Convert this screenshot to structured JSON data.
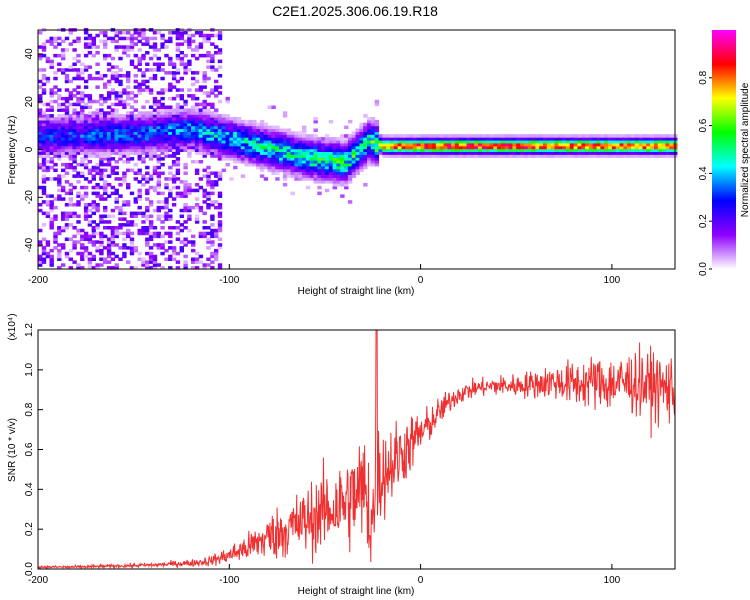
{
  "title": "C2E1.2025.306.06.19.R18",
  "chart_data": [
    {
      "type": "heatmap",
      "title": "C2E1.2025.306.06.19.R18",
      "xlabel": "Height of straight line (km)",
      "ylabel": "Frequency (Hz)",
      "xlim": [
        -200,
        133
      ],
      "ylim": [
        -50,
        50
      ],
      "xticks": [
        -200,
        -100,
        0,
        100
      ],
      "xtick_labels": [
        "-200",
        "-100",
        "0",
        "100"
      ],
      "yticks": [
        -40,
        -20,
        0,
        20,
        40
      ],
      "ytick_labels": [
        "-40",
        "-20",
        "0",
        "20",
        "40"
      ],
      "colorbar": {
        "label": "Normalized spectral amplitude",
        "range": [
          0,
          1
        ],
        "ticks": [
          0.0,
          0.2,
          0.4,
          0.6,
          0.8
        ],
        "tick_labels": [
          "0.0",
          "0.2",
          "0.4",
          "0.6",
          "0.8"
        ],
        "colors": [
          "#ffffff",
          "#8f00ff",
          "#0000ff",
          "#00ffff",
          "#00ff00",
          "#ffff00",
          "#ff0000",
          "#ff00ff"
        ]
      },
      "ridge": [
        {
          "x": -200,
          "freq": 5,
          "amp": 0.3
        },
        {
          "x": -150,
          "freq": 6,
          "amp": 0.35
        },
        {
          "x": -120,
          "freq": 8,
          "amp": 0.4
        },
        {
          "x": -100,
          "freq": 4,
          "amp": 0.45
        },
        {
          "x": -80,
          "freq": 0,
          "amp": 0.5
        },
        {
          "x": -60,
          "freq": -4,
          "amp": 0.5
        },
        {
          "x": -40,
          "freq": -6,
          "amp": 0.55
        },
        {
          "x": -28,
          "freq": 3,
          "amp": 0.5
        },
        {
          "x": -20,
          "freq": 1,
          "amp": 0.8
        },
        {
          "x": 0,
          "freq": 1,
          "amp": 0.9
        },
        {
          "x": 50,
          "freq": 1,
          "amp": 0.9
        },
        {
          "x": 100,
          "freq": 1,
          "amp": 0.85
        },
        {
          "x": 133,
          "freq": 1,
          "amp": 0.85
        }
      ]
    },
    {
      "type": "line",
      "xlabel": "Height of straight line (km)",
      "ylabel": "SNR (10 * v/v)",
      "y_scale_label": "(x10⁴)",
      "xlim": [
        -200,
        133
      ],
      "ylim": [
        0,
        1.2
      ],
      "xticks": [
        -200,
        -100,
        0,
        100
      ],
      "xtick_labels": [
        "-200",
        "-100",
        "0",
        "100"
      ],
      "yticks": [
        0.0,
        0.2,
        0.4,
        0.6,
        0.8,
        1.0,
        1.2
      ],
      "ytick_labels": [
        "0.0",
        "0.2",
        "0.4",
        "0.6",
        "0.8",
        "1.0",
        "1.2"
      ],
      "color": "#f03030",
      "series": [
        {
          "name": "SNR",
          "x": [
            -200,
            -180,
            -160,
            -140,
            -120,
            -110,
            -100,
            -90,
            -80,
            -70,
            -60,
            -50,
            -40,
            -35,
            -30,
            -25,
            -23,
            -20,
            -15,
            -10,
            -5,
            0,
            5,
            10,
            15,
            20,
            30,
            40,
            50,
            60,
            70,
            80,
            90,
            100,
            110,
            120,
            133
          ],
          "y": [
            0.01,
            0.01,
            0.015,
            0.02,
            0.03,
            0.04,
            0.07,
            0.11,
            0.16,
            0.2,
            0.24,
            0.29,
            0.33,
            0.36,
            0.4,
            0.25,
            0.45,
            0.48,
            0.53,
            0.58,
            0.63,
            0.68,
            0.73,
            0.79,
            0.84,
            0.88,
            0.91,
            0.92,
            0.92,
            0.93,
            0.94,
            0.93,
            0.94,
            0.93,
            0.94,
            0.92,
            0.9
          ],
          "noise_amplitude": [
            0.004,
            0.005,
            0.006,
            0.008,
            0.012,
            0.018,
            0.03,
            0.05,
            0.08,
            0.1,
            0.12,
            0.14,
            0.16,
            0.18,
            0.2,
            0.24,
            0.2,
            0.16,
            0.14,
            0.12,
            0.1,
            0.08,
            0.06,
            0.05,
            0.04,
            0.035,
            0.03,
            0.035,
            0.04,
            0.05,
            0.06,
            0.08,
            0.09,
            0.1,
            0.11,
            0.12,
            0.12
          ]
        }
      ],
      "spike": {
        "x": -23,
        "y": 1.2
      }
    }
  ]
}
